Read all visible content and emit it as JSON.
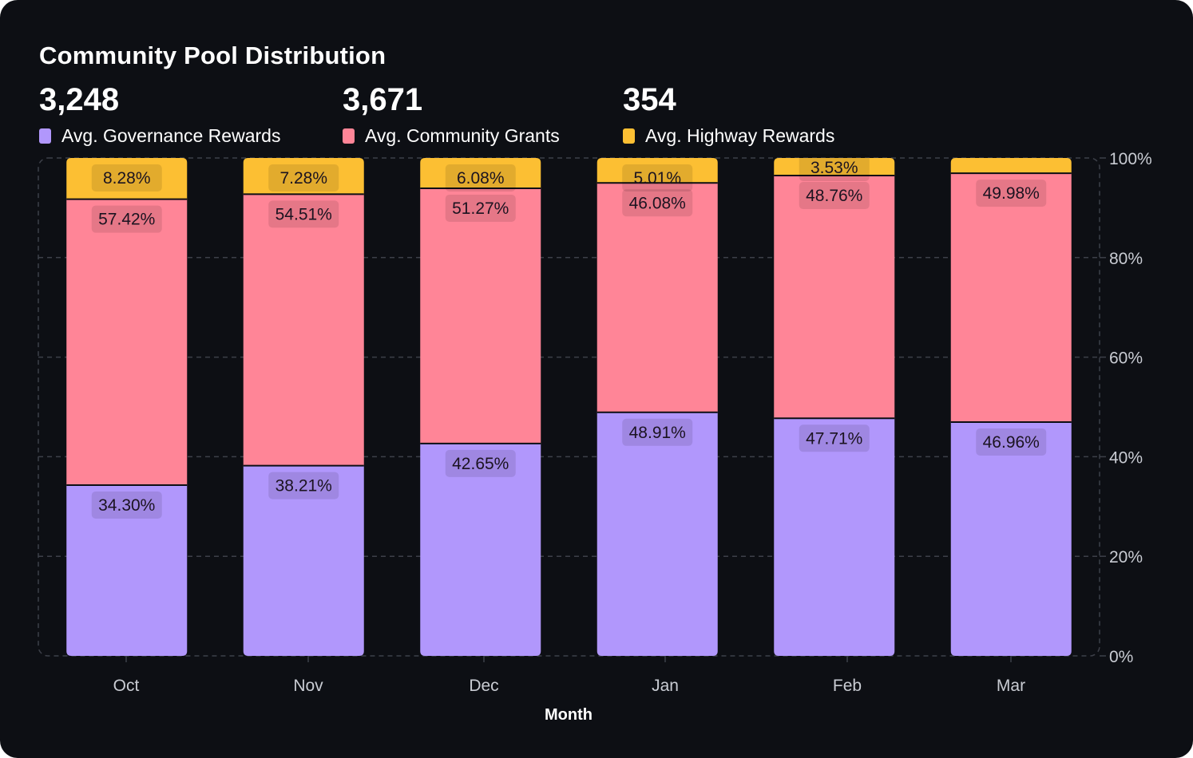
{
  "header": {
    "title": "Community Pool Distribution"
  },
  "stats": [
    {
      "value": "3,248",
      "label": "Avg. Governance Rewards",
      "color": "#b197fc"
    },
    {
      "value": "3,671",
      "label": "Avg. Community Grants",
      "color": "#ff8597"
    },
    {
      "value": "354",
      "label": "Avg. Highway Rewards",
      "color": "#fcbf33"
    }
  ],
  "colors": {
    "background": "#0d0f14",
    "grid": "#3d4049",
    "governance": "#b197fc",
    "grants": "#ff8597",
    "highway": "#fcbf33"
  },
  "chart_data": {
    "type": "bar",
    "stacked": true,
    "normalized": true,
    "title": "Community Pool Distribution",
    "xlabel": "Month",
    "ylabel": "",
    "ylim": [
      0,
      100
    ],
    "yticks": [
      "0%",
      "20%",
      "40%",
      "60%",
      "80%",
      "100%"
    ],
    "y_axis_position": "right",
    "grid": true,
    "legend": "top",
    "categories": [
      "Oct",
      "Nov",
      "Dec",
      "Jan",
      "Feb",
      "Mar"
    ],
    "series": [
      {
        "name": "Avg. Governance Rewards",
        "color": "#b197fc",
        "values": [
          34.3,
          38.21,
          42.65,
          48.91,
          47.71,
          46.96
        ],
        "labels": [
          "34.30%",
          "38.21%",
          "42.65%",
          "48.91%",
          "47.71%",
          "46.96%"
        ]
      },
      {
        "name": "Avg. Community Grants",
        "color": "#ff8597",
        "values": [
          57.42,
          54.51,
          51.27,
          46.08,
          48.76,
          49.98
        ],
        "labels": [
          "57.42%",
          "54.51%",
          "51.27%",
          "46.08%",
          "48.76%",
          "49.98%"
        ]
      },
      {
        "name": "Avg. Highway Rewards",
        "color": "#fcbf33",
        "values": [
          8.28,
          7.28,
          6.08,
          5.01,
          3.53,
          3.06
        ],
        "labels": [
          "8.28%",
          "7.28%",
          "6.08%",
          "5.01%",
          "3.53%",
          ""
        ]
      }
    ]
  }
}
